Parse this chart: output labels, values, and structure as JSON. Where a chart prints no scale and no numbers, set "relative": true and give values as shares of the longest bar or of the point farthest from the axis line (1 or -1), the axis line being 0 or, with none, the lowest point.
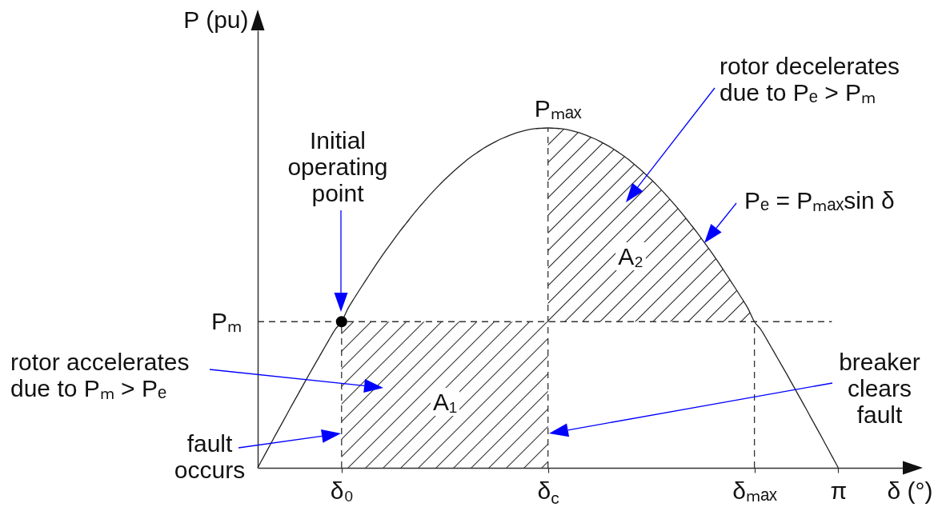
{
  "chart_data": {
    "type": "line",
    "relative": true,
    "xlabel": "δ (°)",
    "ylabel": "P (pu)",
    "categories": [
      null,
      null,
      null,
      null,
      null,
      null,
      null,
      null,
      null,
      null,
      null,
      null,
      null,
      "δ₀",
      null,
      null,
      null,
      null,
      null,
      null,
      null,
      null,
      null,
      null,
      null,
      null,
      null,
      null,
      null,
      null,
      null,
      null,
      null,
      null,
      null,
      null,
      null,
      null,
      null,
      null,
      null,
      null,
      null,
      null,
      null,
      "δ$_{c}$",
      null,
      null,
      null,
      null,
      null,
      null,
      null,
      null,
      null,
      null,
      null,
      null,
      null,
      null,
      null,
      null,
      null,
      null,
      null,
      null,
      null,
      null,
      null,
      null,
      null,
      null,
      null,
      null,
      null,
      null,
      null,
      "δₘₐₓ",
      null,
      null,
      null,
      null,
      null,
      null,
      null,
      null,
      null,
      null,
      null,
      null,
      "π",
      null,
      null,
      null,
      null,
      null,
      null,
      null,
      null,
      null,
      null
    ],
    "series": [
      {
        "type": "area",
        "color": "#333333",
        "values": [
          null,
          null,
          null,
          null,
          null,
          null,
          null,
          null,
          null,
          null,
          null,
          null,
          null,
          0.43,
          0.43,
          0.43,
          0.43,
          0.43,
          0.43,
          0.43,
          0.43,
          0.43,
          0.43,
          0.43,
          0.43,
          0.43,
          0.43,
          0.43,
          0.43,
          0.43,
          0.43,
          0.43,
          0.43,
          0.43,
          0.43,
          0.43,
          0.43,
          0.43,
          0.43,
          0.43,
          0.43,
          0.43,
          0.43,
          0.43,
          0.43,
          0.43,
          null,
          null,
          null,
          null,
          null,
          null,
          null,
          null,
          null,
          null,
          null,
          null,
          null,
          null,
          null,
          null,
          null,
          null,
          null,
          null,
          null,
          null,
          null,
          null,
          null,
          null,
          null,
          null,
          null,
          null,
          null,
          null,
          null,
          null,
          null,
          null,
          null,
          null,
          null,
          null,
          null,
          null,
          null,
          null,
          null,
          null,
          null,
          null,
          null,
          null,
          null,
          null,
          null,
          null,
          null
        ]
      },
      {
        "type": "line",
        "color": "#333333",
        "line_style": "dashed",
        "values": [
          0.43,
          0.43,
          0.43,
          0.43,
          0.43,
          0.43,
          0.43,
          0.43,
          0.43,
          0.43,
          0.43,
          0.43,
          0.43,
          0.43,
          0.43,
          0.43,
          0.43,
          0.43,
          0.43,
          0.43,
          0.43,
          0.43,
          0.43,
          0.43,
          0.43,
          0.43,
          0.43,
          0.43,
          0.43,
          0.43,
          0.43,
          0.43,
          0.43,
          0.43,
          0.43,
          0.43,
          0.43,
          0.43,
          0.43,
          0.43,
          0.43,
          0.43,
          0.43,
          0.43,
          0.43,
          0.43,
          0.43,
          0.43,
          0.43,
          0.43,
          0.43,
          0.43,
          0.43,
          0.43,
          0.43,
          0.43,
          0.43,
          0.43,
          0.43,
          0.43,
          0.43,
          0.43,
          0.43,
          0.43,
          0.43,
          0.43,
          0.43,
          0.43,
          0.43,
          0.43,
          0.43,
          0.43,
          0.43,
          0.43,
          0.43,
          0.43,
          0.43,
          0.43,
          0.43,
          0.43,
          0.43,
          0.43,
          0.43,
          0.43,
          0.43,
          0.43,
          0.43,
          0.43,
          0.43,
          0.43,
          null,
          null,
          null,
          null,
          null,
          null,
          null,
          null,
          null,
          null,
          null
        ]
      },
      {
        "type": "line",
        "color": "#333333",
        "line_style": "dashed",
        "x": [
          "δ₀",
          "δ₀"
        ],
        "values": [
          0,
          0.43
        ]
      },
      {
        "type": "line",
        "color": "#333333",
        "line_style": "dashed",
        "x": [
          "δ$_{c}$",
          "δ$_{c}$"
        ],
        "values": [
          0,
          1
        ]
      },
      {
        "type": "line",
        "color": "#333333",
        "line_style": "dashed",
        "x": [
          "δₘₐₓ",
          "δₘₐₓ"
        ],
        "values": [
          0,
          0.43
        ]
      },
      {
        "color": "#222222",
        "values": [
          0,
          0.035,
          0.07,
          0.105,
          0.139,
          0.174,
          0.208,
          0.242,
          0.276,
          0.309,
          0.342,
          0.375,
          0.407,
          0.43,
          0.469,
          0.5,
          0.53,
          0.559,
          0.588,
          0.616,
          0.643,
          0.669,
          0.695,
          0.719,
          0.743,
          0.766,
          0.788,
          0.809,
          0.829,
          0.848,
          0.866,
          0.883,
          0.899,
          0.914,
          0.927,
          0.94,
          0.951,
          0.961,
          0.97,
          0.978,
          0.985,
          0.99,
          0.995,
          0.998,
          0.999,
          1,
          0.999,
          0.998,
          0.995,
          0.99,
          0.985,
          0.978,
          0.97,
          0.961,
          0.951,
          0.94,
          0.927,
          0.914,
          0.899,
          0.883,
          0.866,
          0.848,
          0.829,
          0.809,
          0.788,
          0.766,
          0.743,
          0.719,
          0.695,
          0.669,
          0.643,
          0.616,
          0.588,
          0.559,
          0.53,
          0.5,
          0.469,
          0.43,
          0.407,
          0.375,
          0.342,
          0.309,
          0.276,
          0.242,
          0.208,
          0.174,
          0.139,
          0.105,
          0.07,
          0.035,
          0,
          null,
          null,
          null,
          null,
          null,
          null,
          null,
          null,
          null,
          null
        ],
        "lower": [
          null,
          null,
          null,
          null,
          null,
          null,
          null,
          null,
          null,
          null,
          null,
          null,
          null,
          null,
          null,
          null,
          null,
          null,
          null,
          null,
          null,
          null,
          null,
          null,
          null,
          null,
          null,
          null,
          null,
          null,
          null,
          null,
          null,
          null,
          null,
          null,
          null,
          null,
          null,
          null,
          null,
          null,
          null,
          null,
          null,
          0.43,
          0.43,
          0.43,
          0.43,
          0.43,
          0.43,
          0.43,
          0.43,
          0.43,
          0.43,
          0.43,
          0.43,
          0.43,
          0.43,
          0.43,
          0.43,
          0.43,
          0.43,
          0.43,
          0.43,
          0.43,
          0.43,
          0.43,
          0.43,
          0.43,
          0.43,
          0.43,
          0.43,
          0.43,
          0.43,
          0.43,
          0.43,
          0.43,
          null,
          null,
          null,
          null,
          null,
          null,
          null,
          null,
          null,
          null,
          null,
          null,
          null,
          null,
          null,
          null,
          null,
          null,
          null,
          null,
          null,
          null,
          null
        ],
        "upper": [
          null,
          null,
          null,
          null,
          null,
          null,
          null,
          null,
          null,
          null,
          null,
          null,
          null,
          null,
          null,
          null,
          null,
          null,
          null,
          null,
          null,
          null,
          null,
          null,
          null,
          null,
          null,
          null,
          null,
          null,
          null,
          null,
          null,
          null,
          null,
          null,
          null,
          null,
          null,
          null,
          null,
          null,
          null,
          null,
          null,
          1,
          0.999,
          0.998,
          0.995,
          0.99,
          0.985,
          0.978,
          0.97,
          0.961,
          0.951,
          0.94,
          0.927,
          0.914,
          0.899,
          0.883,
          0.866,
          0.848,
          0.829,
          0.809,
          0.788,
          0.766,
          0.743,
          0.719,
          0.695,
          0.669,
          0.643,
          0.616,
          0.588,
          0.559,
          0.53,
          0.5,
          0.469,
          0.43,
          null,
          null,
          null,
          null,
          null,
          null,
          null,
          null,
          null,
          null,
          null,
          null,
          null,
          null,
          null,
          null,
          null,
          null,
          null,
          null,
          null,
          null,
          null
        ]
      },
      {
        "type": "scatter",
        "color": "#000000",
        "marker": "circle",
        "x": [
          "δ₀"
        ],
        "values": [
          0.43
        ]
      }
    ],
    "annotations": [
      "Initial operating point",
      "rotor decelerates due to Pₑ > Pₘ",
      {
        "text": "Pₘₐₓ",
        "x": "δ$_{c}$",
        "y": 1
      },
      "Pₑ = Pₘₐₓsin δ",
      "A₂",
      "Pₘ",
      "rotor accelerates due to Pₘ > Pₑ",
      "A₁",
      "breaker clears fault",
      "fault occurs"
    ]
  }
}
